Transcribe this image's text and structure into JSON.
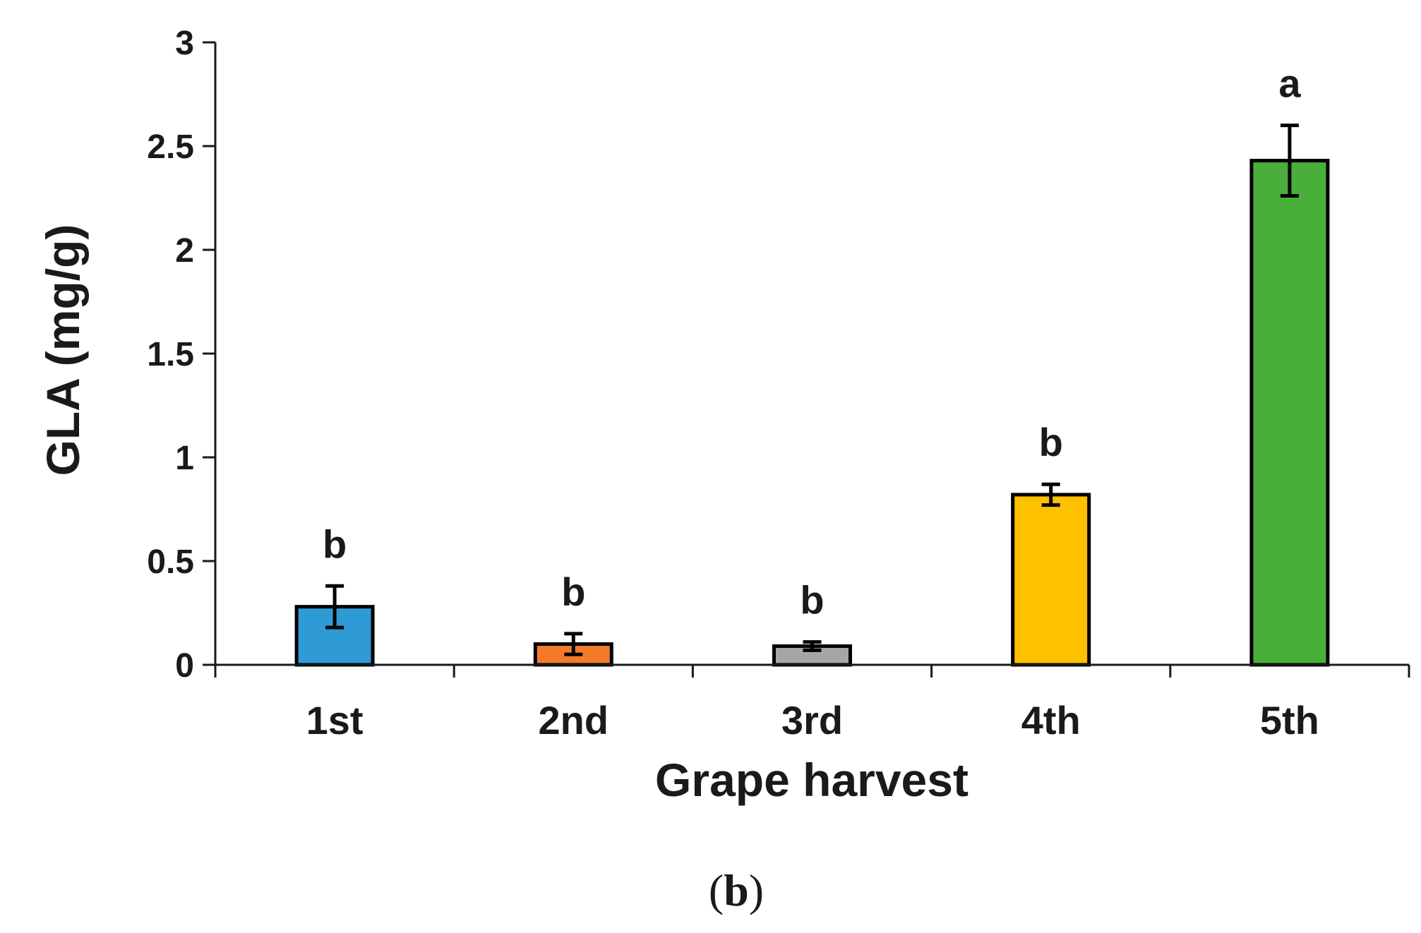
{
  "chart_data": {
    "type": "bar",
    "xlabel": "Grape harvest",
    "ylabel": "GLA (mg/g)",
    "categories": [
      "1st",
      "2nd",
      "3rd",
      "4th",
      "5th"
    ],
    "values": [
      0.28,
      0.1,
      0.09,
      0.82,
      2.43
    ],
    "errors": [
      0.1,
      0.05,
      0.02,
      0.05,
      0.17
    ],
    "significance": [
      "b",
      "b",
      "b",
      "b",
      "a"
    ],
    "colors": [
      "#2E9BD6",
      "#F47A2A",
      "#A6A6A6",
      "#FFC000",
      "#4AAE3A"
    ],
    "ylim": [
      0,
      3
    ],
    "yticks": [
      "0",
      "0.5",
      "1",
      "1.5",
      "2",
      "2.5",
      "3"
    ],
    "grid": false,
    "legend": "none"
  },
  "panel": {
    "open": "(",
    "letter": "b",
    "close": ")"
  }
}
